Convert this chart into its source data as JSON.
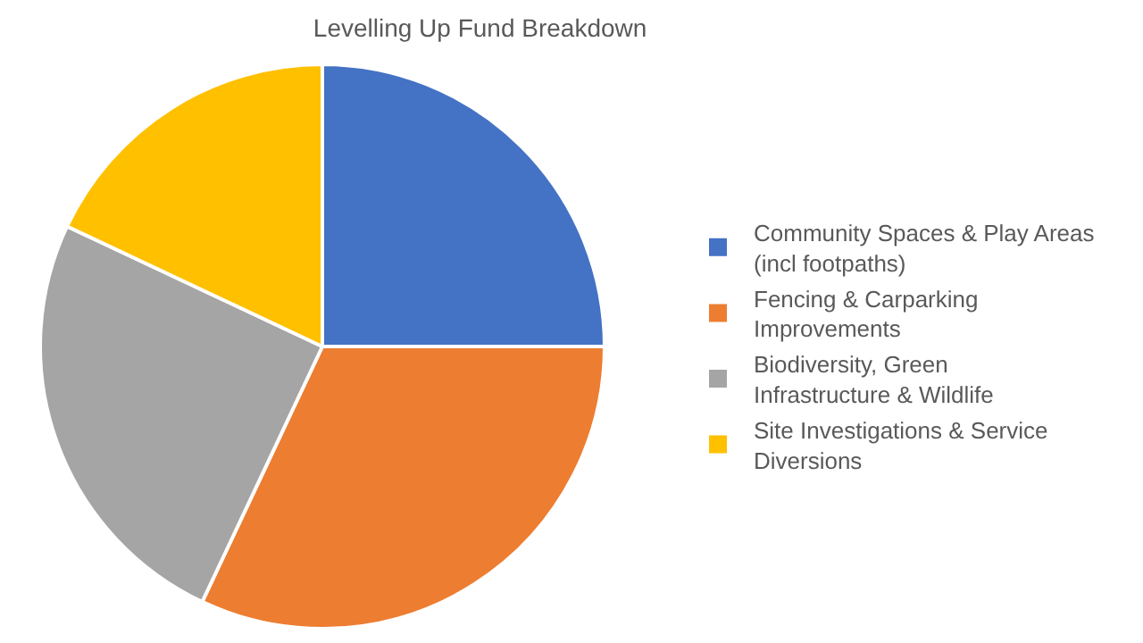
{
  "chart_data": {
    "type": "pie",
    "title": "Levelling Up Fund Breakdown",
    "categories": [
      "Community Spaces & Play Areas (incl footpaths)",
      "Fencing & Carparking Improvements",
      "Biodiversity, Green Infrastructure & Wildlife",
      "Site Investigations & Service Diversions"
    ],
    "values": [
      25,
      32,
      25,
      18
    ],
    "colors": [
      "#4472c4",
      "#ed7d31",
      "#a5a5a5",
      "#ffc000"
    ],
    "legend": "right"
  }
}
